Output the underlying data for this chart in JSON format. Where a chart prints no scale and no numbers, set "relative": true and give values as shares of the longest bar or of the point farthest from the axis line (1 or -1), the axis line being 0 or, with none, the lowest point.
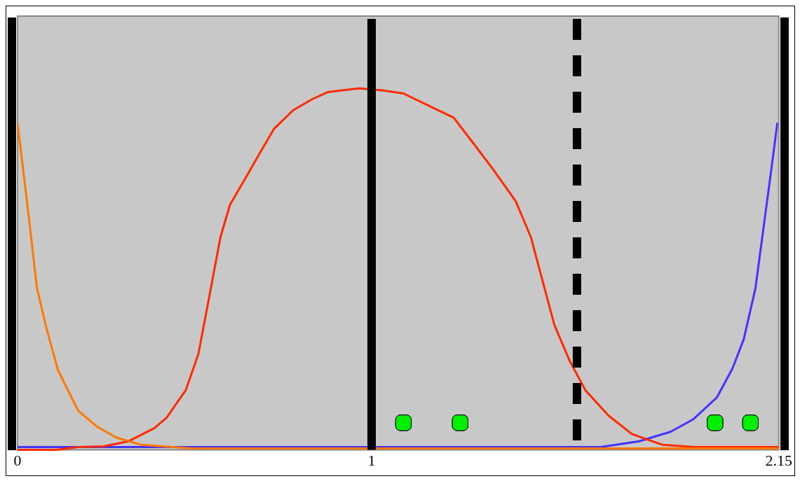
{
  "chart_data": {
    "type": "line",
    "relative": true,
    "xlim": [
      0,
      2.15
    ],
    "xticks": [
      0,
      1,
      2.15
    ],
    "tick_labels": "x",
    "grid": false,
    "legend": false,
    "marker": "none",
    "series": [
      {
        "color": "#ff7700",
        "x": [
          0,
          0.029,
          0.055,
          0.082,
          0.114,
          0.171,
          0.225,
          0.279,
          0.35,
          0.493,
          2.15
        ],
        "values": [
          0.905,
          0.668,
          0.447,
          0.336,
          0.221,
          0.109,
          0.064,
          0.034,
          0.014,
          0.004,
          0.004
        ]
      },
      {
        "color": "#ff2a00",
        "x": [
          0,
          0.109,
          0.171,
          0.243,
          0.314,
          0.386,
          0.421,
          0.475,
          0.511,
          0.546,
          0.573,
          0.6,
          0.654,
          0.689,
          0.725,
          0.779,
          0.832,
          0.877,
          0.93,
          0.966,
          1.035,
          1.09,
          1.166,
          1.232,
          1.286,
          1.341,
          1.407,
          1.45,
          1.483,
          1.516,
          1.56,
          1.604,
          1.669,
          1.735,
          1.822,
          1.91,
          2.15
        ],
        "values": [
          0,
          0,
          0.008,
          0.01,
          0.024,
          0.06,
          0.089,
          0.165,
          0.266,
          0.447,
          0.588,
          0.678,
          0.769,
          0.829,
          0.889,
          0.94,
          0.97,
          0.99,
          0.996,
          1,
          0.994,
          0.986,
          0.95,
          0.919,
          0.85,
          0.779,
          0.688,
          0.588,
          0.467,
          0.346,
          0.245,
          0.165,
          0.095,
          0.044,
          0.014,
          0.008,
          0.008
        ]
      },
      {
        "color": "#4433ff",
        "x": [
          0,
          1.647,
          1.756,
          1.844,
          1.909,
          1.975,
          2.019,
          2.051,
          2.084,
          2.106,
          2.128,
          2.146
        ],
        "values": [
          0.008,
          0.008,
          0.024,
          0.05,
          0.085,
          0.145,
          0.225,
          0.306,
          0.447,
          0.608,
          0.769,
          0.905
        ]
      },
      {
        "type": "scatter",
        "marker": "square",
        "color": "#00ee00",
        "x": [
          1.09,
          1.25,
          1.97,
          2.07
        ],
        "values": [
          0.075,
          0.075,
          0.075,
          0.075
        ]
      }
    ],
    "ref_lines": [
      {
        "axis": "x",
        "value": 1,
        "color": "#000000",
        "line_style": "solid"
      },
      {
        "axis": "x",
        "value": 1.58,
        "color": "#000000",
        "line_style": "dashed"
      }
    ]
  }
}
